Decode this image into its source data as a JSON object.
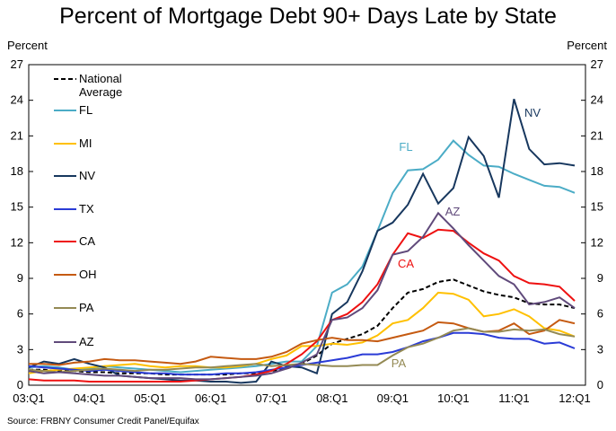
{
  "chart_data": {
    "type": "line",
    "title": "Percent of Mortgage Debt 90+ Days Late by State",
    "y_label": "Percent",
    "y2_label": "Percent",
    "source": "Source: FRBNY Consumer Credit Panel/Equifax",
    "categories": [
      "03:Q1",
      null,
      null,
      null,
      "04:Q1",
      null,
      null,
      null,
      "05:Q1",
      null,
      null,
      null,
      "06:Q1",
      null,
      null,
      null,
      "07:Q1",
      null,
      null,
      null,
      "08:Q1",
      null,
      null,
      null,
      "09:Q1",
      null,
      null,
      null,
      "10:Q1",
      null,
      null,
      null,
      "11:Q1",
      null,
      null,
      null,
      "12:Q1"
    ],
    "ylim": [
      0,
      27
    ],
    "yticks": [
      0,
      3,
      6,
      9,
      12,
      15,
      18,
      21,
      24,
      27
    ],
    "y2lim": [
      0,
      27
    ],
    "y2ticks": [
      0,
      3,
      6,
      9,
      12,
      15,
      18,
      21,
      24,
      27
    ],
    "series": [
      {
        "name": "National Average",
        "color": "#000000",
        "dashed": true,
        "values": [
          1.3,
          1.3,
          1.2,
          1.2,
          1.1,
          1.1,
          1.0,
          1.0,
          1.0,
          0.9,
          0.9,
          0.9,
          0.9,
          0.9,
          1.0,
          1.0,
          1.2,
          1.4,
          1.8,
          2.5,
          3.5,
          3.9,
          4.3,
          5.0,
          6.5,
          7.8,
          8.1,
          8.7,
          8.9,
          8.4,
          7.9,
          7.6,
          7.4,
          6.9,
          6.8,
          6.8,
          6.5
        ]
      },
      {
        "name": "FL",
        "color": "#4bacc6",
        "values": [
          1.5,
          1.6,
          1.5,
          1.3,
          1.4,
          1.6,
          1.5,
          1.4,
          1.3,
          1.2,
          1.1,
          1.2,
          1.3,
          1.4,
          1.5,
          1.6,
          1.8,
          2.0,
          2.0,
          3.3,
          7.8,
          8.5,
          10.0,
          13.0,
          16.2,
          18.1,
          18.2,
          19.0,
          20.6,
          19.4,
          18.5,
          18.4,
          17.8,
          17.3,
          16.8,
          16.7,
          16.2
        ]
      },
      {
        "name": "MI",
        "color": "#ffc000",
        "values": [
          1.0,
          1.2,
          1.3,
          1.4,
          1.5,
          1.6,
          1.7,
          1.8,
          1.6,
          1.5,
          1.6,
          1.6,
          1.5,
          1.5,
          1.6,
          1.8,
          2.2,
          2.5,
          3.3,
          3.3,
          3.5,
          3.4,
          3.6,
          4.2,
          5.2,
          5.5,
          6.5,
          7.8,
          7.7,
          7.2,
          5.8,
          6.0,
          6.4,
          5.8,
          4.8,
          4.6,
          4.1
        ]
      },
      {
        "name": "NV",
        "color": "#17375e",
        "values": [
          1.5,
          2.0,
          1.8,
          2.2,
          1.8,
          1.5,
          0.8,
          0.7,
          0.6,
          0.5,
          0.4,
          0.4,
          0.3,
          0.3,
          0.2,
          0.3,
          2.0,
          1.6,
          1.5,
          1.0,
          6.0,
          7.0,
          9.6,
          13.0,
          13.7,
          15.2,
          17.8,
          15.3,
          16.6,
          20.9,
          19.3,
          15.8,
          24.1,
          19.9,
          18.6,
          18.7,
          18.5
        ]
      },
      {
        "name": "TX",
        "color": "#2a3bd6",
        "values": [
          1.6,
          1.5,
          1.4,
          1.3,
          1.2,
          1.3,
          1.2,
          1.1,
          1.0,
          1.0,
          0.9,
          0.9,
          0.9,
          1.0,
          1.0,
          1.1,
          1.3,
          1.5,
          1.7,
          1.9,
          2.1,
          2.3,
          2.6,
          2.6,
          2.8,
          3.2,
          3.7,
          4.0,
          4.4,
          4.4,
          4.3,
          4.0,
          3.9,
          3.9,
          3.5,
          3.6,
          3.1
        ]
      },
      {
        "name": "CA",
        "color": "#ee1111",
        "values": [
          0.5,
          0.4,
          0.4,
          0.4,
          0.3,
          0.3,
          0.3,
          0.3,
          0.3,
          0.3,
          0.3,
          0.4,
          0.5,
          0.6,
          0.7,
          0.9,
          1.2,
          1.8,
          2.6,
          3.7,
          5.5,
          6.0,
          7.0,
          8.5,
          11.0,
          12.8,
          12.4,
          13.1,
          13.0,
          12.0,
          11.1,
          10.5,
          9.2,
          8.6,
          8.5,
          8.3,
          7.1
        ]
      },
      {
        "name": "OH",
        "color": "#c55a11",
        "values": [
          1.8,
          1.8,
          1.7,
          1.9,
          2.0,
          2.2,
          2.1,
          2.1,
          2.0,
          1.9,
          1.8,
          2.0,
          2.4,
          2.3,
          2.2,
          2.2,
          2.4,
          2.8,
          3.5,
          3.8,
          4.0,
          3.8,
          3.8,
          3.7,
          4.0,
          4.3,
          4.6,
          5.3,
          5.2,
          4.8,
          4.5,
          4.6,
          5.2,
          4.3,
          4.6,
          5.5,
          5.2
        ]
      },
      {
        "name": "PA",
        "color": "#948a54",
        "values": [
          1.3,
          1.2,
          1.1,
          1.2,
          1.3,
          1.4,
          1.3,
          1.2,
          1.3,
          1.3,
          1.4,
          1.5,
          1.5,
          1.6,
          1.7,
          1.8,
          1.6,
          1.7,
          1.8,
          1.7,
          1.6,
          1.6,
          1.7,
          1.7,
          2.5,
          3.2,
          3.5,
          4.0,
          4.6,
          4.8,
          4.5,
          4.5,
          4.7,
          4.6,
          4.7,
          4.3,
          4.1
        ]
      },
      {
        "name": "AZ",
        "color": "#604a7b",
        "values": [
          1.2,
          1.0,
          1.1,
          1.0,
          0.9,
          0.8,
          0.8,
          0.7,
          0.6,
          0.6,
          0.6,
          0.5,
          0.5,
          0.6,
          0.7,
          0.8,
          1.0,
          1.4,
          1.9,
          2.6,
          5.5,
          5.7,
          6.5,
          8.0,
          11.0,
          11.3,
          12.5,
          14.5,
          13.2,
          11.8,
          10.5,
          9.2,
          8.5,
          6.8,
          7.0,
          7.4,
          6.5
        ]
      }
    ],
    "annotations": [
      "FL",
      "NV",
      "AZ",
      "CA",
      "PA"
    ]
  }
}
